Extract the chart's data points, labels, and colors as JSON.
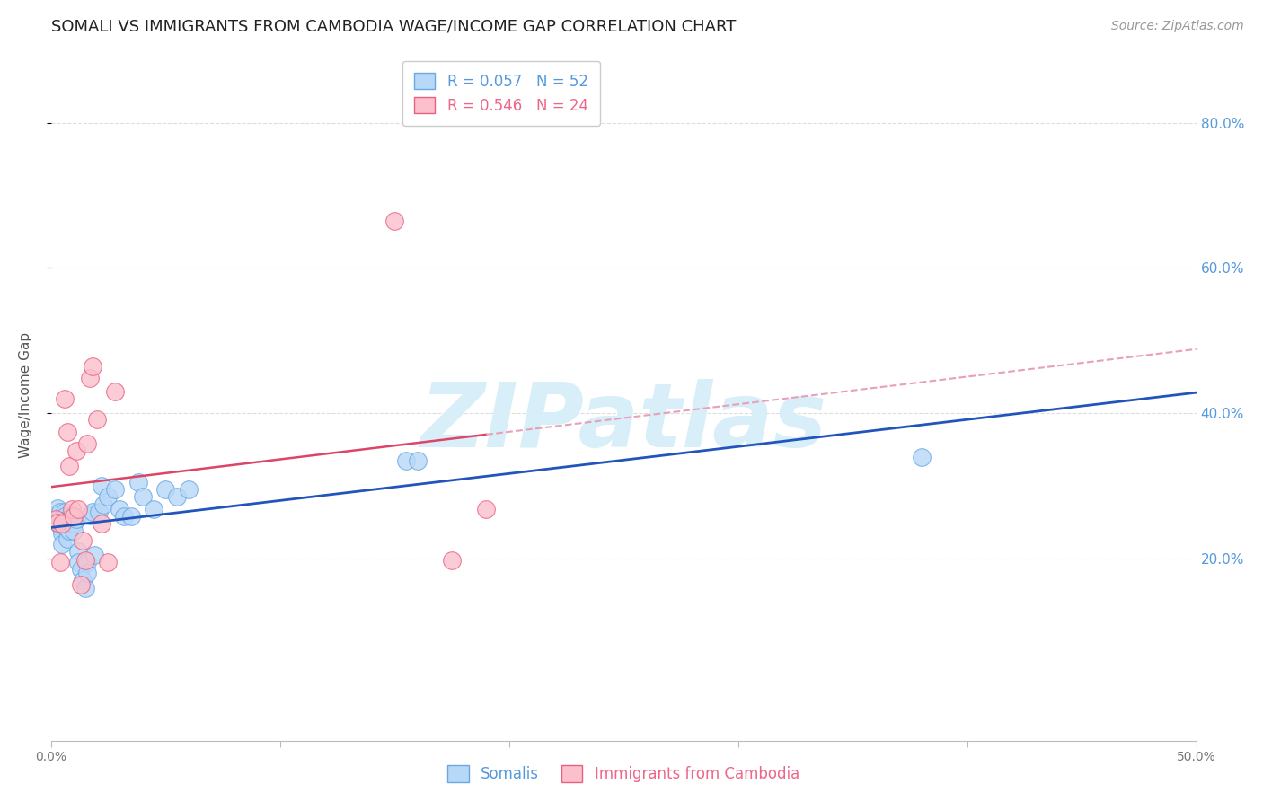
{
  "title": "SOMALI VS IMMIGRANTS FROM CAMBODIA WAGE/INCOME GAP CORRELATION CHART",
  "source": "Source: ZipAtlas.com",
  "ylabel": "Wage/Income Gap",
  "xlim": [
    0.0,
    0.5
  ],
  "ylim": [
    -0.05,
    0.9
  ],
  "yticks": [
    0.2,
    0.4,
    0.6,
    0.8
  ],
  "ytick_labels": [
    "20.0%",
    "40.0%",
    "60.0%",
    "80.0%"
  ],
  "xtick_positions": [
    0.0,
    0.1,
    0.2,
    0.3,
    0.4,
    0.5
  ],
  "xtick_labels_show": [
    "0.0%",
    "",
    "",
    "",
    "",
    "50.0%"
  ],
  "legend_line1": "R = 0.057   N = 52",
  "legend_line2": "R = 0.546   N = 24",
  "somali_label": "Somalis",
  "cambodia_label": "Immigrants from Cambodia",
  "somali_fill_color": "#b8d8f8",
  "somali_edge_color": "#6aa8e0",
  "cambodia_fill_color": "#fcc0cc",
  "cambodia_edge_color": "#e86080",
  "blue_line_color": "#2255bb",
  "pink_line_color": "#dd4466",
  "dashed_line_color": "#e8a0b8",
  "watermark_text": "ZIPatlas",
  "watermark_color": "#d8eef8",
  "legend_text_blue": "#5599dd",
  "legend_text_pink": "#ee6688",
  "right_axis_color": "#5599dd",
  "background_color": "#ffffff",
  "grid_color": "#dddddd",
  "somali_x": [
    0.002,
    0.003,
    0.003,
    0.004,
    0.004,
    0.004,
    0.005,
    0.005,
    0.005,
    0.006,
    0.006,
    0.006,
    0.007,
    0.007,
    0.007,
    0.007,
    0.008,
    0.008,
    0.008,
    0.009,
    0.009,
    0.01,
    0.01,
    0.01,
    0.011,
    0.012,
    0.012,
    0.013,
    0.014,
    0.015,
    0.016,
    0.016,
    0.017,
    0.018,
    0.019,
    0.021,
    0.022,
    0.023,
    0.025,
    0.028,
    0.03,
    0.032,
    0.035,
    0.038,
    0.04,
    0.045,
    0.05,
    0.055,
    0.06,
    0.155,
    0.16,
    0.38
  ],
  "somali_y": [
    0.26,
    0.27,
    0.25,
    0.265,
    0.245,
    0.255,
    0.24,
    0.235,
    0.22,
    0.265,
    0.258,
    0.248,
    0.255,
    0.248,
    0.238,
    0.228,
    0.255,
    0.248,
    0.238,
    0.258,
    0.248,
    0.255,
    0.248,
    0.238,
    0.255,
    0.21,
    0.195,
    0.185,
    0.17,
    0.16,
    0.195,
    0.18,
    0.26,
    0.265,
    0.205,
    0.265,
    0.3,
    0.275,
    0.285,
    0.295,
    0.268,
    0.258,
    0.258,
    0.305,
    0.285,
    0.268,
    0.295,
    0.285,
    0.295,
    0.335,
    0.335,
    0.34
  ],
  "cambodia_x": [
    0.002,
    0.003,
    0.004,
    0.005,
    0.006,
    0.007,
    0.008,
    0.009,
    0.01,
    0.011,
    0.012,
    0.013,
    0.014,
    0.015,
    0.016,
    0.017,
    0.018,
    0.02,
    0.022,
    0.025,
    0.028,
    0.15,
    0.175,
    0.19
  ],
  "cambodia_y": [
    0.255,
    0.25,
    0.195,
    0.248,
    0.42,
    0.375,
    0.328,
    0.268,
    0.258,
    0.348,
    0.268,
    0.165,
    0.225,
    0.198,
    0.358,
    0.448,
    0.465,
    0.392,
    0.248,
    0.195,
    0.43,
    0.665,
    0.198,
    0.268
  ],
  "title_fontsize": 13,
  "axis_label_fontsize": 11,
  "tick_fontsize": 10,
  "legend_fontsize": 12,
  "source_fontsize": 10
}
